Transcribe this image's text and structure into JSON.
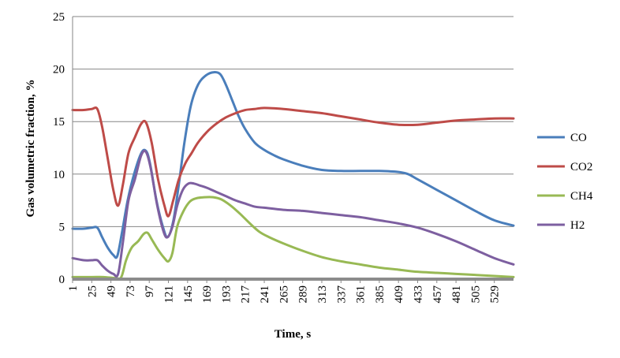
{
  "chart_data": {
    "type": "line",
    "xlabel": "Time, s",
    "ylabel": "Gas volumetric  fraction, %",
    "ylim": [
      0,
      25
    ],
    "yticks": [
      0,
      5,
      10,
      15,
      20,
      25
    ],
    "xlim": [
      1,
      553
    ],
    "xticks": [
      1,
      25,
      49,
      73,
      97,
      121,
      145,
      169,
      193,
      217,
      241,
      265,
      289,
      313,
      337,
      361,
      385,
      409,
      433,
      457,
      481,
      505,
      529
    ],
    "grid": "horizontal",
    "legend": "right",
    "series": [
      {
        "name": "CO",
        "color": "#4a7ebb",
        "points": [
          [
            1,
            4.8
          ],
          [
            15,
            4.8
          ],
          [
            25,
            4.9
          ],
          [
            32,
            4.9
          ],
          [
            38,
            4.0
          ],
          [
            45,
            3.0
          ],
          [
            52,
            2.3
          ],
          [
            57,
            2.2
          ],
          [
            63,
            4.5
          ],
          [
            70,
            7.5
          ],
          [
            78,
            10.0
          ],
          [
            87,
            12.0
          ],
          [
            93,
            12.2
          ],
          [
            98,
            11.0
          ],
          [
            106,
            7.5
          ],
          [
            114,
            5.0
          ],
          [
            120,
            4.0
          ],
          [
            127,
            5.5
          ],
          [
            134,
            9.0
          ],
          [
            141,
            13.0
          ],
          [
            149,
            16.5
          ],
          [
            158,
            18.5
          ],
          [
            168,
            19.4
          ],
          [
            178,
            19.7
          ],
          [
            186,
            19.5
          ],
          [
            193,
            18.5
          ],
          [
            201,
            17.0
          ],
          [
            209,
            15.5
          ],
          [
            217,
            14.3
          ],
          [
            229,
            13.0
          ],
          [
            241,
            12.3
          ],
          [
            253,
            11.8
          ],
          [
            265,
            11.4
          ],
          [
            289,
            10.8
          ],
          [
            313,
            10.4
          ],
          [
            337,
            10.3
          ],
          [
            361,
            10.3
          ],
          [
            385,
            10.3
          ],
          [
            409,
            10.2
          ],
          [
            421,
            10.0
          ],
          [
            433,
            9.5
          ],
          [
            457,
            8.5
          ],
          [
            481,
            7.5
          ],
          [
            505,
            6.5
          ],
          [
            529,
            5.6
          ],
          [
            553,
            5.1
          ]
        ]
      },
      {
        "name": "CO2",
        "color": "#be4b48",
        "points": [
          [
            1,
            16.1
          ],
          [
            15,
            16.1
          ],
          [
            25,
            16.2
          ],
          [
            32,
            16.2
          ],
          [
            38,
            14.5
          ],
          [
            45,
            11.5
          ],
          [
            52,
            8.5
          ],
          [
            58,
            7.0
          ],
          [
            64,
            9.0
          ],
          [
            71,
            12.0
          ],
          [
            79,
            13.5
          ],
          [
            87,
            14.8
          ],
          [
            93,
            14.9
          ],
          [
            100,
            13.0
          ],
          [
            108,
            9.5
          ],
          [
            116,
            7.0
          ],
          [
            121,
            6.0
          ],
          [
            127,
            7.5
          ],
          [
            134,
            9.5
          ],
          [
            142,
            11.0
          ],
          [
            150,
            12.0
          ],
          [
            158,
            13.0
          ],
          [
            169,
            14.0
          ],
          [
            181,
            14.8
          ],
          [
            193,
            15.4
          ],
          [
            205,
            15.8
          ],
          [
            217,
            16.1
          ],
          [
            229,
            16.2
          ],
          [
            241,
            16.3
          ],
          [
            265,
            16.2
          ],
          [
            289,
            16.0
          ],
          [
            313,
            15.8
          ],
          [
            337,
            15.5
          ],
          [
            361,
            15.2
          ],
          [
            385,
            14.9
          ],
          [
            409,
            14.7
          ],
          [
            433,
            14.7
          ],
          [
            457,
            14.9
          ],
          [
            481,
            15.1
          ],
          [
            505,
            15.2
          ],
          [
            529,
            15.3
          ],
          [
            553,
            15.3
          ]
        ]
      },
      {
        "name": "CH4",
        "color": "#98b954",
        "points": [
          [
            1,
            0.2
          ],
          [
            25,
            0.2
          ],
          [
            40,
            0.2
          ],
          [
            55,
            0.1
          ],
          [
            62,
            0.2
          ],
          [
            68,
            1.8
          ],
          [
            75,
            3.0
          ],
          [
            83,
            3.6
          ],
          [
            90,
            4.3
          ],
          [
            95,
            4.4
          ],
          [
            100,
            3.8
          ],
          [
            108,
            2.8
          ],
          [
            116,
            2.0
          ],
          [
            121,
            1.7
          ],
          [
            126,
            2.5
          ],
          [
            132,
            5.0
          ],
          [
            140,
            6.5
          ],
          [
            148,
            7.4
          ],
          [
            156,
            7.7
          ],
          [
            166,
            7.8
          ],
          [
            177,
            7.8
          ],
          [
            187,
            7.6
          ],
          [
            199,
            7.0
          ],
          [
            211,
            6.2
          ],
          [
            223,
            5.3
          ],
          [
            235,
            4.5
          ],
          [
            247,
            4.0
          ],
          [
            265,
            3.4
          ],
          [
            289,
            2.7
          ],
          [
            313,
            2.1
          ],
          [
            337,
            1.7
          ],
          [
            361,
            1.4
          ],
          [
            385,
            1.1
          ],
          [
            409,
            0.9
          ],
          [
            433,
            0.7
          ],
          [
            457,
            0.6
          ],
          [
            481,
            0.5
          ],
          [
            505,
            0.4
          ],
          [
            529,
            0.3
          ],
          [
            553,
            0.2
          ]
        ]
      },
      {
        "name": "H2",
        "color": "#7d5fa0",
        "points": [
          [
            1,
            2.0
          ],
          [
            15,
            1.8
          ],
          [
            25,
            1.8
          ],
          [
            32,
            1.8
          ],
          [
            38,
            1.3
          ],
          [
            45,
            0.8
          ],
          [
            52,
            0.5
          ],
          [
            58,
            0.5
          ],
          [
            64,
            3.5
          ],
          [
            71,
            7.5
          ],
          [
            79,
            9.5
          ],
          [
            87,
            11.8
          ],
          [
            93,
            12.1
          ],
          [
            99,
            10.5
          ],
          [
            107,
            7.0
          ],
          [
            115,
            4.5
          ],
          [
            120,
            4.0
          ],
          [
            126,
            5.0
          ],
          [
            132,
            7.0
          ],
          [
            139,
            8.5
          ],
          [
            146,
            9.1
          ],
          [
            153,
            9.1
          ],
          [
            161,
            8.9
          ],
          [
            169,
            8.7
          ],
          [
            181,
            8.3
          ],
          [
            193,
            7.9
          ],
          [
            205,
            7.5
          ],
          [
            217,
            7.2
          ],
          [
            229,
            6.9
          ],
          [
            241,
            6.8
          ],
          [
            265,
            6.6
          ],
          [
            289,
            6.5
          ],
          [
            313,
            6.3
          ],
          [
            337,
            6.1
          ],
          [
            361,
            5.9
          ],
          [
            385,
            5.6
          ],
          [
            409,
            5.3
          ],
          [
            433,
            4.9
          ],
          [
            457,
            4.3
          ],
          [
            481,
            3.6
          ],
          [
            505,
            2.8
          ],
          [
            529,
            2.0
          ],
          [
            553,
            1.4
          ]
        ]
      }
    ]
  }
}
